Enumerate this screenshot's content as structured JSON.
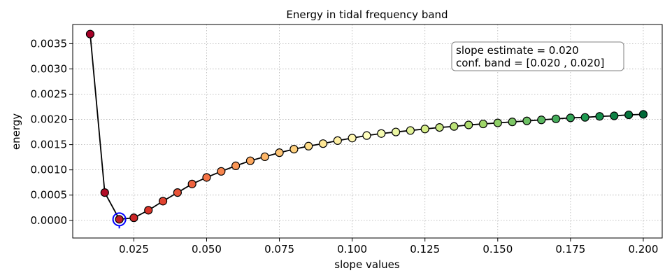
{
  "chart_data": {
    "type": "line",
    "title": "Energy in tidal frequency band",
    "xlabel": "slope values",
    "ylabel": "energy",
    "xlim": [
      0.004,
      0.2065
    ],
    "ylim": [
      -0.00035,
      0.00388
    ],
    "x_ticks": [
      "0.025",
      "0.050",
      "0.075",
      "0.100",
      "0.125",
      "0.150",
      "0.175",
      "0.200"
    ],
    "y_ticks": [
      "0.0000",
      "0.0005",
      "0.0010",
      "0.0015",
      "0.0020",
      "0.0025",
      "0.0030",
      "0.0035"
    ],
    "grid": true,
    "grid_style": "dotted",
    "line_color": "#000000",
    "marker_colormap": "RdYlGn",
    "highlight_color": "#0000ff",
    "series": [
      {
        "x": [
          0.01,
          0.015,
          0.02,
          0.025,
          0.03,
          0.035,
          0.04,
          0.045,
          0.05,
          0.055,
          0.06,
          0.065,
          0.07,
          0.075,
          0.08,
          0.085,
          0.09,
          0.095,
          0.1,
          0.105,
          0.11,
          0.115,
          0.12,
          0.125,
          0.13,
          0.135,
          0.14,
          0.145,
          0.15,
          0.155,
          0.16,
          0.165,
          0.17,
          0.175,
          0.18,
          0.185,
          0.19,
          0.195,
          0.2
        ],
        "y": [
          0.00369,
          0.00055,
          2e-05,
          5e-05,
          0.0002,
          0.00038,
          0.00055,
          0.00072,
          0.00085,
          0.00097,
          0.00108,
          0.00118,
          0.00126,
          0.00134,
          0.00141,
          0.00147,
          0.00152,
          0.00158,
          0.00163,
          0.00168,
          0.00172,
          0.00175,
          0.00178,
          0.00181,
          0.00184,
          0.00186,
          0.00189,
          0.00191,
          0.00193,
          0.00195,
          0.00197,
          0.00199,
          0.00201,
          0.00203,
          0.00204,
          0.00206,
          0.00207,
          0.00209,
          0.0021
        ]
      }
    ],
    "highlight_point": {
      "x": 0.02,
      "y": 2e-05
    },
    "annotation": {
      "line1": "slope estimate = 0.020",
      "line2": "conf. band = [0.020 , 0.020]"
    }
  }
}
